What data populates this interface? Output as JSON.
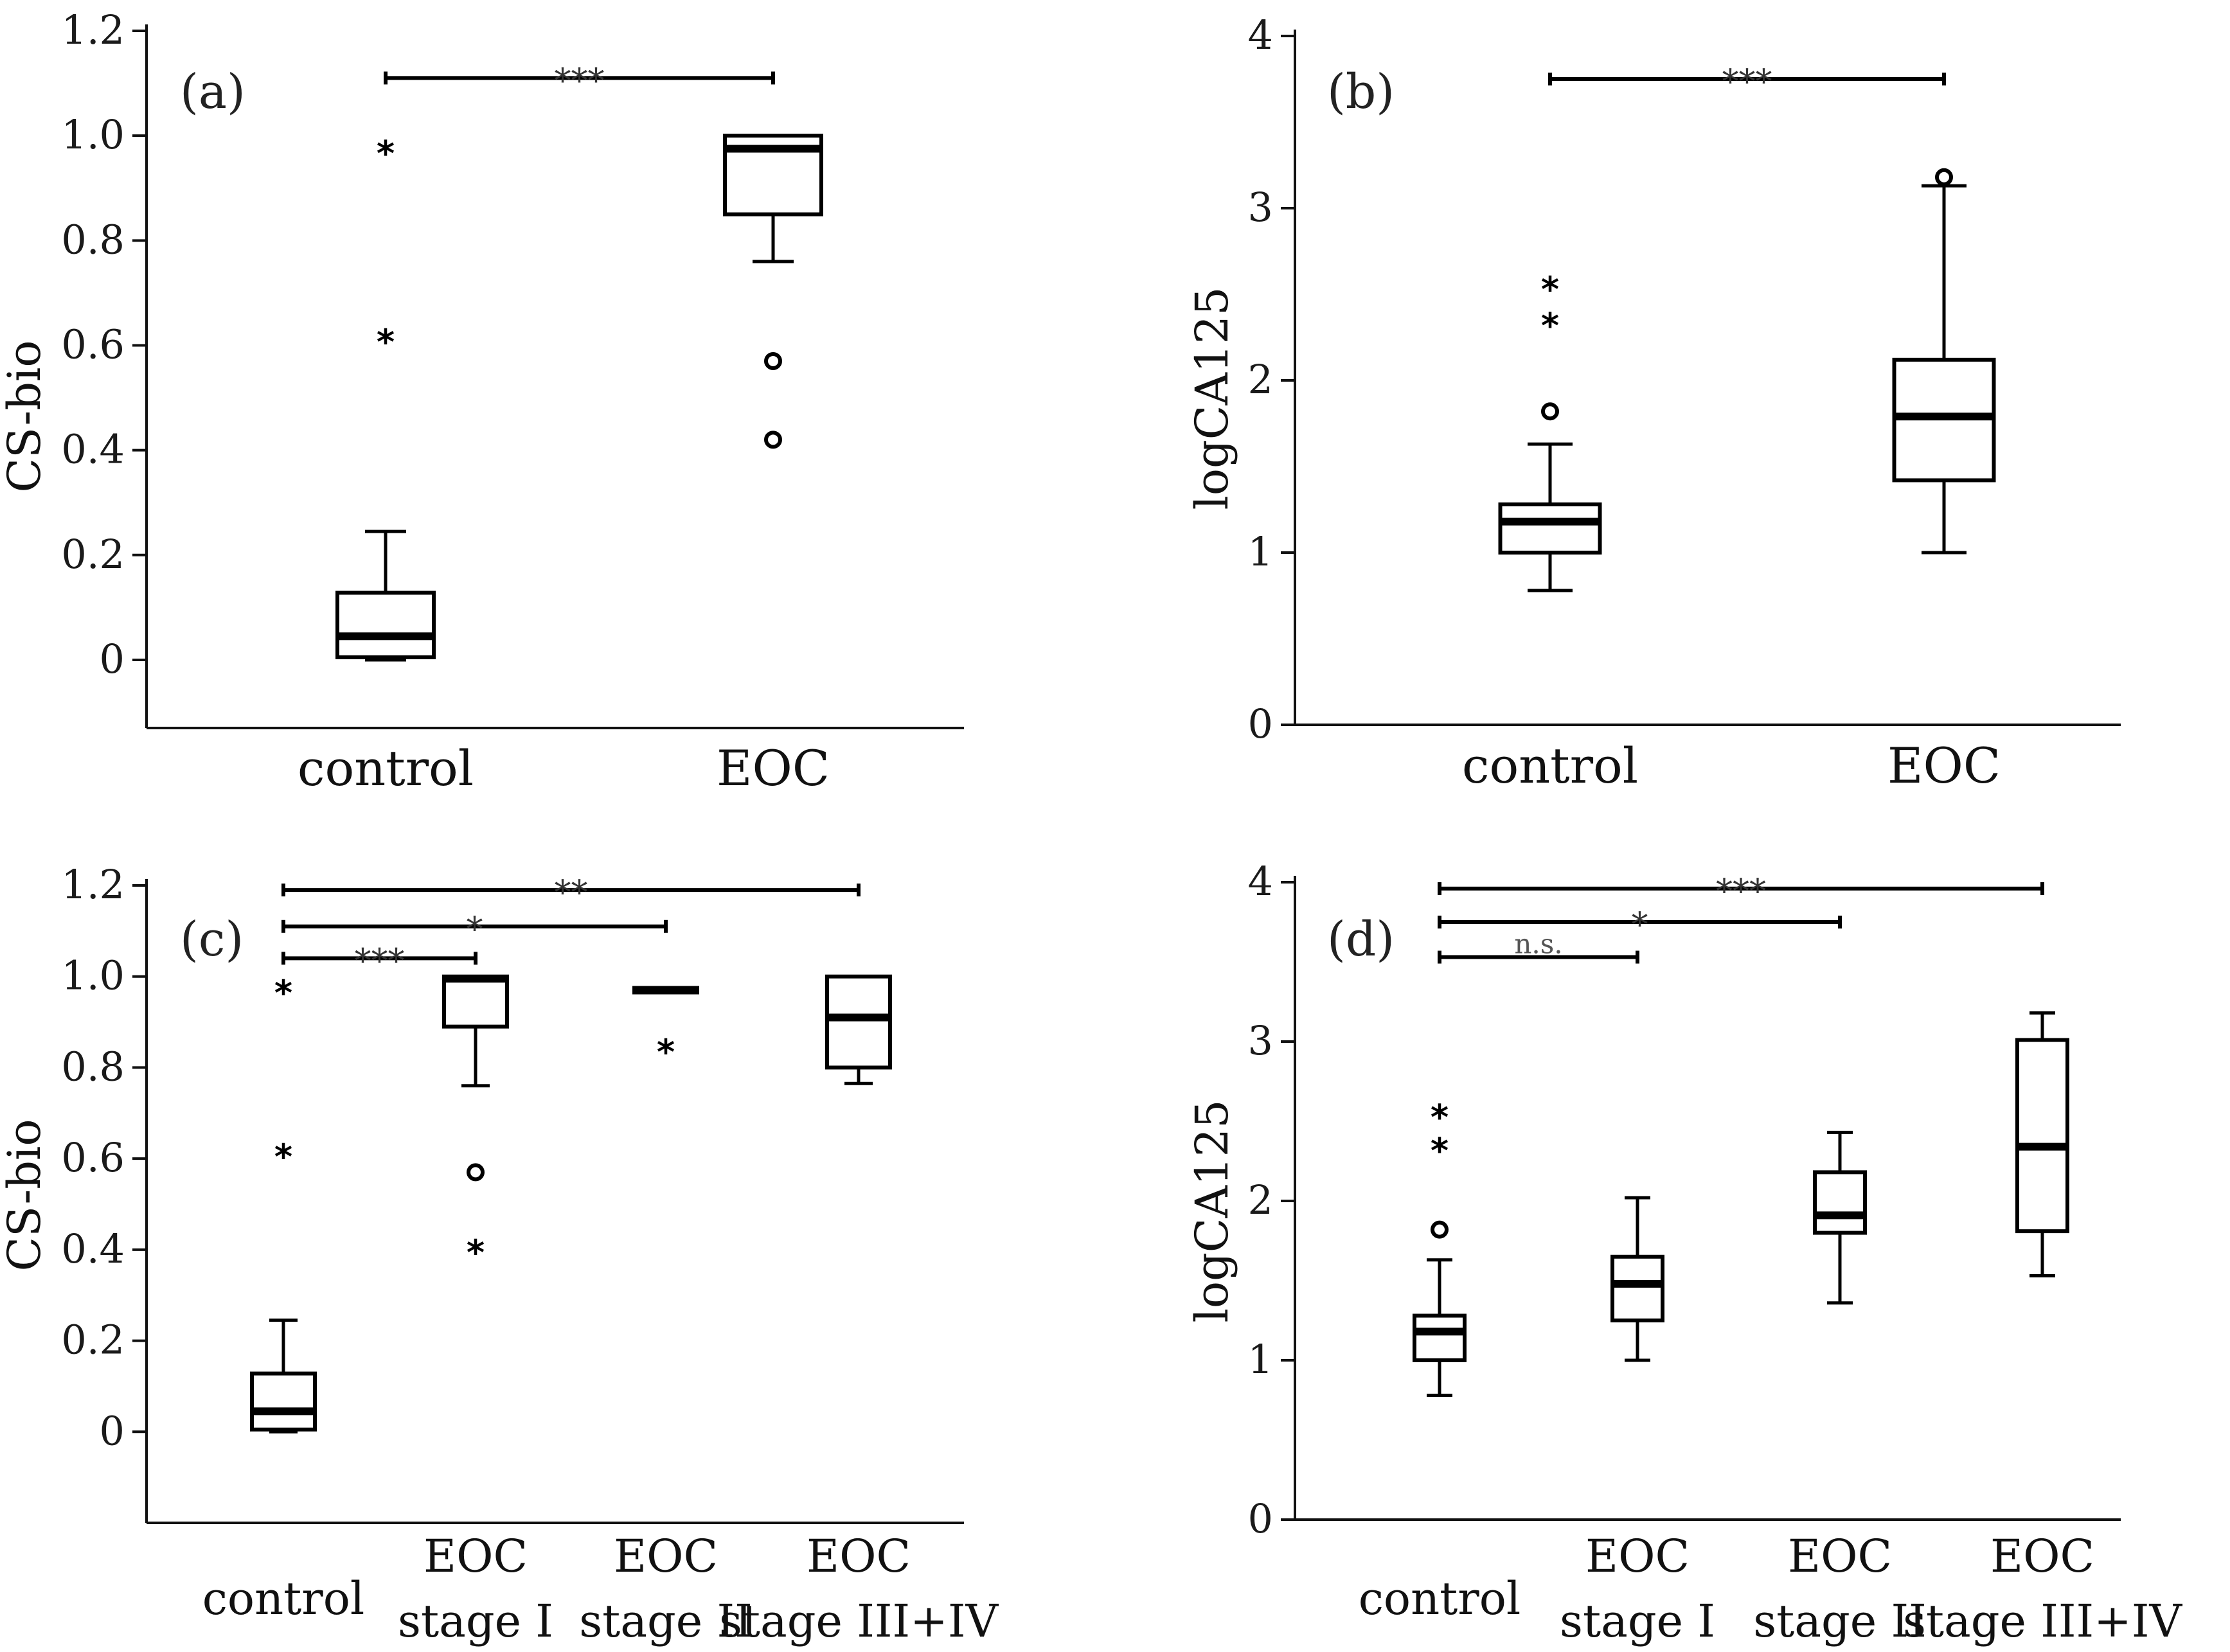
{
  "chart_data": [
    {
      "type": "box",
      "panel_label": "(a)",
      "ylabel": "CS-bio",
      "ylim": [
        -0.13,
        1.2
      ],
      "yticks": [
        0,
        0.2,
        0.4,
        0.6,
        0.8,
        1.0,
        1.2
      ],
      "ytick_labels": [
        "0",
        "0.2",
        "0.4",
        "0.6",
        "0.8",
        "1.0",
        "1.2"
      ],
      "categories": [
        [
          "control"
        ],
        [
          "EOC"
        ]
      ],
      "boxes": [
        {
          "whisker_low": 0.0,
          "q1": 0.005,
          "median": 0.045,
          "q3": 0.128,
          "whisker_high": 0.245,
          "outliers": [
            {
              "value": 0.98,
              "marker": "star"
            },
            {
              "value": 0.62,
              "marker": "star"
            }
          ]
        },
        {
          "whisker_low": 0.76,
          "q1": 0.85,
          "median": 0.975,
          "q3": 1.0,
          "whisker_high": 1.0,
          "outliers": [
            {
              "value": 0.57,
              "marker": "circle"
            },
            {
              "value": 0.42,
              "marker": "circle"
            }
          ]
        }
      ],
      "significance": [
        {
          "from": 0,
          "to": 1,
          "y": 1.11,
          "label": "***"
        }
      ]
    },
    {
      "type": "box",
      "panel_label": "(b)",
      "ylabel": "logCA125",
      "ylim": [
        0,
        4
      ],
      "yticks": [
        0,
        1,
        2,
        3,
        4
      ],
      "ytick_labels": [
        "0",
        "1",
        "2",
        "3",
        "4"
      ],
      "categories": [
        [
          "control"
        ],
        [
          "EOC"
        ]
      ],
      "boxes": [
        {
          "whisker_low": 0.78,
          "q1": 1.0,
          "median": 1.18,
          "q3": 1.28,
          "whisker_high": 1.63,
          "outliers": [
            {
              "value": 2.57,
              "marker": "star"
            },
            {
              "value": 2.36,
              "marker": "star"
            },
            {
              "value": 1.82,
              "marker": "circle"
            }
          ]
        },
        {
          "whisker_low": 1.0,
          "q1": 1.42,
          "median": 1.79,
          "q3": 2.12,
          "whisker_high": 3.13,
          "outliers": [
            {
              "value": 3.18,
              "marker": "circle"
            }
          ]
        }
      ],
      "significance": [
        {
          "from": 0,
          "to": 1,
          "y": 3.75,
          "label": "***"
        }
      ]
    },
    {
      "type": "box",
      "panel_label": "(c)",
      "ylabel": "CS-bio",
      "ylim": [
        -0.2,
        1.2
      ],
      "yticks": [
        0,
        0.2,
        0.4,
        0.6,
        0.8,
        1.0,
        1.2
      ],
      "ytick_labels": [
        "0",
        "0.2",
        "0.4",
        "0.6",
        "0.8",
        "1.0",
        "1.2"
      ],
      "categories": [
        [
          "control"
        ],
        [
          "EOC",
          "stage I"
        ],
        [
          "EOC",
          "stage II"
        ],
        [
          "EOC",
          "stage III+IV"
        ]
      ],
      "boxes": [
        {
          "whisker_low": 0.0,
          "q1": 0.005,
          "median": 0.045,
          "q3": 0.128,
          "whisker_high": 0.245,
          "outliers": [
            {
              "value": 0.98,
              "marker": "star"
            },
            {
              "value": 0.62,
              "marker": "star"
            }
          ]
        },
        {
          "whisker_low": 0.76,
          "q1": 0.89,
          "median": 0.995,
          "q3": 1.0,
          "whisker_high": 1.0,
          "outliers": [
            {
              "value": 0.57,
              "marker": "circle"
            },
            {
              "value": 0.41,
              "marker": "star"
            }
          ]
        },
        {
          "whisker_low": 0.965,
          "q1": 0.965,
          "median": 0.97,
          "q3": 0.975,
          "whisker_high": 0.975,
          "outliers": [
            {
              "value": 0.85,
              "marker": "star"
            }
          ]
        },
        {
          "whisker_low": 0.765,
          "q1": 0.8,
          "median": 0.91,
          "q3": 1.0,
          "whisker_high": 1.0,
          "outliers": []
        }
      ],
      "significance": [
        {
          "from": 0,
          "to": 1,
          "y": 1.04,
          "label": "***"
        },
        {
          "from": 0,
          "to": 2,
          "y": 1.11,
          "label": "*"
        },
        {
          "from": 0,
          "to": 3,
          "y": 1.19,
          "label": "**"
        }
      ]
    },
    {
      "type": "box",
      "panel_label": "(d)",
      "ylabel": "logCA125",
      "ylim": [
        0,
        4
      ],
      "yticks": [
        0,
        1,
        2,
        3,
        4
      ],
      "ytick_labels": [
        "0",
        "1",
        "2",
        "3",
        "4"
      ],
      "categories": [
        [
          "control"
        ],
        [
          "EOC",
          "stage I"
        ],
        [
          "EOC",
          "stage II"
        ],
        [
          "EOC",
          "stage III+IV"
        ]
      ],
      "boxes": [
        {
          "whisker_low": 0.78,
          "q1": 1.0,
          "median": 1.18,
          "q3": 1.28,
          "whisker_high": 1.63,
          "outliers": [
            {
              "value": 2.57,
              "marker": "star"
            },
            {
              "value": 2.36,
              "marker": "star"
            },
            {
              "value": 1.82,
              "marker": "circle"
            }
          ]
        },
        {
          "whisker_low": 1.0,
          "q1": 1.25,
          "median": 1.48,
          "q3": 1.65,
          "whisker_high": 2.02,
          "outliers": []
        },
        {
          "whisker_low": 1.36,
          "q1": 1.8,
          "median": 1.91,
          "q3": 2.18,
          "whisker_high": 2.43,
          "outliers": []
        },
        {
          "whisker_low": 1.53,
          "q1": 1.81,
          "median": 2.34,
          "q3": 3.01,
          "whisker_high": 3.18,
          "outliers": []
        }
      ],
      "significance": [
        {
          "from": 0,
          "to": 1,
          "y": 3.53,
          "label": "n.s."
        },
        {
          "from": 0,
          "to": 2,
          "y": 3.75,
          "label": "*"
        },
        {
          "from": 0,
          "to": 3,
          "y": 3.96,
          "label": "***"
        }
      ]
    }
  ]
}
